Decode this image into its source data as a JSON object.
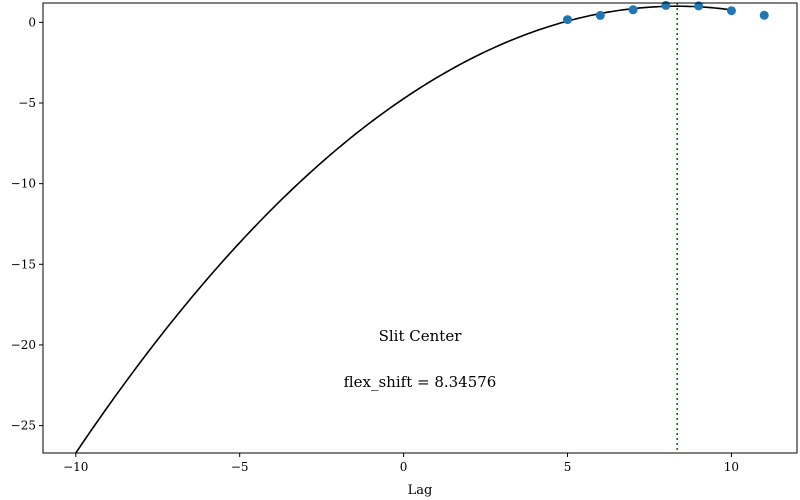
{
  "chart_data": {
    "type": "scatter",
    "title": "",
    "xlabel": "Lag",
    "ylabel": "",
    "xlim": [
      -11,
      12
    ],
    "ylim": [
      -26.7,
      1.2
    ],
    "xticks": [
      -10,
      -5,
      0,
      5,
      10
    ],
    "yticks": [
      0,
      -5,
      -10,
      -15,
      -20,
      -25
    ],
    "grid": false,
    "annotations": [
      "Slit Center",
      "flex_shift = 8.34576"
    ],
    "points": {
      "x": [
        5,
        6,
        7,
        8,
        9,
        10,
        11
      ],
      "y": [
        0.17,
        0.43,
        0.78,
        1.05,
        1.02,
        0.72,
        0.44
      ]
    },
    "fit_curve": {
      "type": "quadratic",
      "vertex_x": 8.34576,
      "vertex_y": 1.0,
      "x_start": -10,
      "x_end": 10,
      "color": "#000000"
    },
    "vline": {
      "x": 8.34576,
      "color": "#008000",
      "style": "dotted"
    },
    "marker_color": "#1f77b4"
  }
}
